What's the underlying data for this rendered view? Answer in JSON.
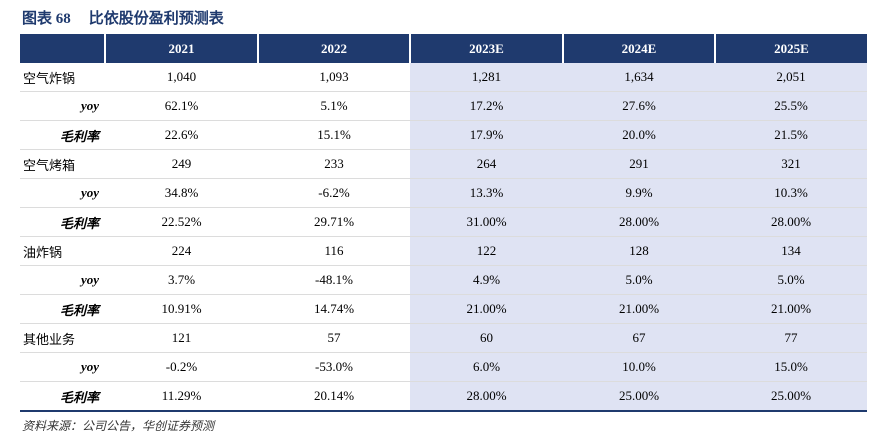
{
  "title": {
    "figure_label": "图表 68",
    "text": "比依股份盈利预测表"
  },
  "table": {
    "columns": [
      "",
      "2021",
      "2022",
      "2023E",
      "2024E",
      "2025E"
    ],
    "rows": [
      {
        "label": "空气炸锅",
        "type": "main",
        "values": [
          "1,040",
          "1,093",
          "1,281",
          "1,634",
          "2,051"
        ]
      },
      {
        "label": "yoy",
        "type": "sub",
        "values": [
          "62.1%",
          "5.1%",
          "17.2%",
          "27.6%",
          "25.5%"
        ]
      },
      {
        "label": "毛利率",
        "type": "sub",
        "values": [
          "22.6%",
          "15.1%",
          "17.9%",
          "20.0%",
          "21.5%"
        ]
      },
      {
        "label": "空气烤箱",
        "type": "main",
        "values": [
          "249",
          "233",
          "264",
          "291",
          "321"
        ]
      },
      {
        "label": "yoy",
        "type": "sub",
        "values": [
          "34.8%",
          "-6.2%",
          "13.3%",
          "9.9%",
          "10.3%"
        ]
      },
      {
        "label": "毛利率",
        "type": "sub",
        "values": [
          "22.52%",
          "29.71%",
          "31.00%",
          "28.00%",
          "28.00%"
        ]
      },
      {
        "label": "油炸锅",
        "type": "main",
        "values": [
          "224",
          "116",
          "122",
          "128",
          "134"
        ]
      },
      {
        "label": "yoy",
        "type": "sub",
        "values": [
          "3.7%",
          "-48.1%",
          "4.9%",
          "5.0%",
          "5.0%"
        ]
      },
      {
        "label": "毛利率",
        "type": "sub",
        "values": [
          "10.91%",
          "14.74%",
          "21.00%",
          "21.00%",
          "21.00%"
        ]
      },
      {
        "label": "其他业务",
        "type": "main",
        "values": [
          "121",
          "57",
          "60",
          "67",
          "77"
        ]
      },
      {
        "label": "yoy",
        "type": "sub",
        "values": [
          "-0.2%",
          "-53.0%",
          "6.0%",
          "10.0%",
          "15.0%"
        ]
      },
      {
        "label": "毛利率",
        "type": "sub",
        "values": [
          "11.29%",
          "20.14%",
          "28.00%",
          "25.00%",
          "25.00%"
        ]
      }
    ]
  },
  "source": "资料来源：公司公告，华创证券预测",
  "colors": {
    "header_bg": "#1f3a6e",
    "forecast_bg": "#dfe3f3",
    "title": "#1f3a6e"
  }
}
